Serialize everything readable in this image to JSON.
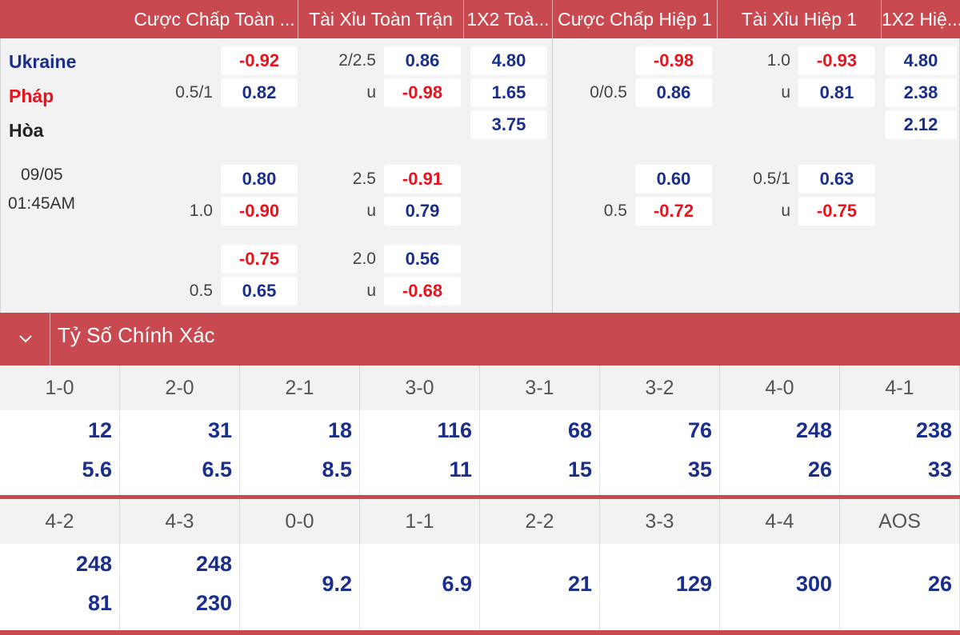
{
  "header": {
    "columns": [
      "Cược Chấp Toàn ...",
      "Tài Xỉu Toàn Trận",
      "1X2 Toà...",
      "Cược Chấp Hiệp 1",
      "Tài Xỉu Hiệp 1",
      "1X2 Hiệ..."
    ]
  },
  "match": {
    "home": "Ukraine",
    "away": "Pháp",
    "draw": "Hòa",
    "date": "09/05",
    "time": "01:45AM",
    "colors": {
      "home": "#1a2f8c",
      "away": "#e8141d",
      "draw": "#222222"
    }
  },
  "full_time": {
    "handicap": [
      {
        "line": "0.5/1",
        "home": "-0.92",
        "away": "0.82"
      },
      {
        "line": "1.0",
        "home": "0.80",
        "away": "-0.90"
      },
      {
        "line": "0.5",
        "home": "-0.75",
        "away": "0.65"
      }
    ],
    "over_under": [
      {
        "line": "2/2.5",
        "over": "0.86",
        "u": "u",
        "under": "-0.98"
      },
      {
        "line": "2.5",
        "over": "-0.91",
        "u": "u",
        "under": "0.79"
      },
      {
        "line": "2.0",
        "over": "0.56",
        "u": "u",
        "under": "-0.68"
      }
    ],
    "x12": [
      "4.80",
      "1.65",
      "3.75"
    ]
  },
  "first_half": {
    "handicap": [
      {
        "line": "0/0.5",
        "home": "-0.98",
        "away": "0.86"
      },
      {
        "line": "0.5",
        "home": "0.60",
        "away": "-0.72"
      }
    ],
    "over_under": [
      {
        "line": "1.0",
        "over": "-0.93",
        "u": "u",
        "under": "0.81"
      },
      {
        "line": "0.5/1",
        "over": "0.63",
        "u": "u",
        "under": "-0.75"
      }
    ],
    "x12": [
      "4.80",
      "2.38",
      "2.12"
    ]
  },
  "correct_score": {
    "title": "Tỷ Số Chính Xác",
    "row1": [
      {
        "score": "1-0",
        "a": "12",
        "b": "5.6"
      },
      {
        "score": "2-0",
        "a": "31",
        "b": "6.5"
      },
      {
        "score": "2-1",
        "a": "18",
        "b": "8.5"
      },
      {
        "score": "3-0",
        "a": "116",
        "b": "11"
      },
      {
        "score": "3-1",
        "a": "68",
        "b": "15"
      },
      {
        "score": "3-2",
        "a": "76",
        "b": "35"
      },
      {
        "score": "4-0",
        "a": "248",
        "b": "26"
      },
      {
        "score": "4-1",
        "a": "238",
        "b": "33"
      }
    ],
    "row2": [
      {
        "score": "4-2",
        "a": "248",
        "b": "81"
      },
      {
        "score": "4-3",
        "a": "248",
        "b": "230"
      },
      {
        "score": "0-0",
        "a": "9.2"
      },
      {
        "score": "1-1",
        "a": "6.9"
      },
      {
        "score": "2-2",
        "a": "21"
      },
      {
        "score": "3-3",
        "a": "129"
      },
      {
        "score": "4-4",
        "a": "300"
      },
      {
        "score": "AOS",
        "a": "26"
      }
    ]
  }
}
